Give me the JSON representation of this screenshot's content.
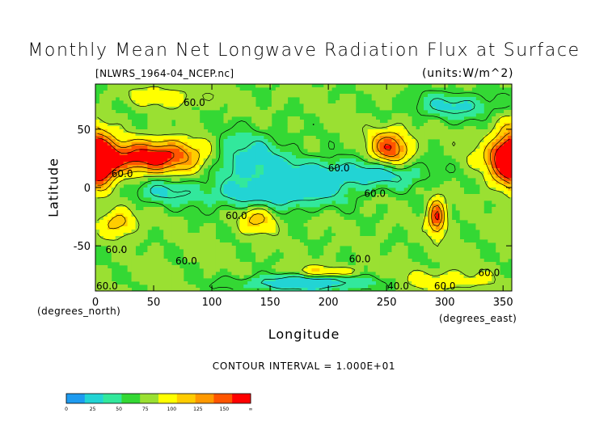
{
  "chart_data": {
    "type": "heatmap",
    "title": "Monthly Mean Net Longwave Radiation Flux at Surface",
    "source_file": "[NLWRS_1964-04_NCEP.nc]",
    "units": "(units:W/m^2)",
    "xlabel": "Longitude",
    "ylabel": "Latitude",
    "x_unit": "(degrees_east)",
    "y_unit": "(degrees_north)",
    "xlim": [
      0,
      357.5
    ],
    "ylim": [
      -88.75,
      88.75
    ],
    "x_ticks": [
      0,
      50,
      100,
      150,
      200,
      250,
      300,
      350
    ],
    "x_tick_labels": [
      "0",
      "50",
      "100",
      "150",
      "200",
      "250",
      "300",
      "350"
    ],
    "y_ticks": [
      50,
      0,
      -50
    ],
    "y_tick_labels": [
      "50",
      "0",
      "-50"
    ],
    "contour_interval_label": "CONTOUR INTERVAL = 1.000E+01",
    "contour_labels": [
      {
        "text": "60.0",
        "lon": 85,
        "lat": 70
      },
      {
        "text": "60.0",
        "lon": 23,
        "lat": 9
      },
      {
        "text": "60.0",
        "lon": 209,
        "lat": 14
      },
      {
        "text": "60.0",
        "lon": 121,
        "lat": -27
      },
      {
        "text": "60.0",
        "lon": 240,
        "lat": -8
      },
      {
        "text": "60.0",
        "lon": 18,
        "lat": -56
      },
      {
        "text": "60.0",
        "lon": 78,
        "lat": -66
      },
      {
        "text": "60.0",
        "lon": 227,
        "lat": -64
      },
      {
        "text": "60.0",
        "lon": 338,
        "lat": -76
      },
      {
        "text": "60.0",
        "lon": 10,
        "lat": -94
      },
      {
        "text": "40.0",
        "lon": 260,
        "lat": -105
      },
      {
        "text": "60.0",
        "lon": 300,
        "lat": -113
      }
    ],
    "colorbar": {
      "bounds": [
        "0",
        "25",
        "50",
        "75",
        "100",
        "125",
        "150",
        "∞"
      ],
      "colors": [
        "#1e9bf0",
        "#22d4d4",
        "#32e89c",
        "#34d834",
        "#9ae032",
        "#ffff00",
        "#ffcc00",
        "#ff9900",
        "#ff5500",
        "#ff0000"
      ]
    },
    "regions": [
      {
        "lon": 25,
        "lat": 25,
        "val": 138,
        "sx": 30,
        "sy": 10
      },
      {
        "lon": 70,
        "lat": 28,
        "val": 122,
        "sx": 22,
        "sy": 10
      },
      {
        "lon": 95,
        "lat": 22,
        "val": 82,
        "sx": 12,
        "sy": 12
      },
      {
        "lon": 125,
        "lat": 25,
        "val": 28,
        "sx": 28,
        "sy": 15
      },
      {
        "lon": 190,
        "lat": 10,
        "val": 30,
        "sx": 30,
        "sy": 10
      },
      {
        "lon": 250,
        "lat": 12,
        "val": 35,
        "sx": 28,
        "sy": 8
      },
      {
        "lon": 150,
        "lat": -8,
        "val": 30,
        "sx": 40,
        "sy": 9
      },
      {
        "lon": 60,
        "lat": -3,
        "val": 40,
        "sx": 22,
        "sy": 8
      },
      {
        "lon": 253,
        "lat": 34,
        "val": 138,
        "sx": 12,
        "sy": 11
      },
      {
        "lon": 355,
        "lat": 26,
        "val": 150,
        "sx": 11,
        "sy": 17
      },
      {
        "lon": 5,
        "lat": 22,
        "val": 120,
        "sx": 8,
        "sy": 15
      },
      {
        "lon": 140,
        "lat": -25,
        "val": 110,
        "sx": 11,
        "sy": 9
      },
      {
        "lon": 20,
        "lat": -30,
        "val": 112,
        "sx": 10,
        "sy": 8
      },
      {
        "lon": 293,
        "lat": -25,
        "val": 148,
        "sx": 5,
        "sy": 10
      },
      {
        "lon": 310,
        "lat": 70,
        "val": 35,
        "sx": 28,
        "sy": 8
      },
      {
        "lon": 60,
        "lat": 78,
        "val": 92,
        "sx": 25,
        "sy": 6
      },
      {
        "lon": 180,
        "lat": -82,
        "val": 20,
        "sx": 40,
        "sy": 5
      },
      {
        "lon": 300,
        "lat": -80,
        "val": 95,
        "sx": 25,
        "sy": 6
      },
      {
        "lon": 200,
        "lat": -72,
        "val": 100,
        "sx": 20,
        "sy": 3
      }
    ]
  }
}
